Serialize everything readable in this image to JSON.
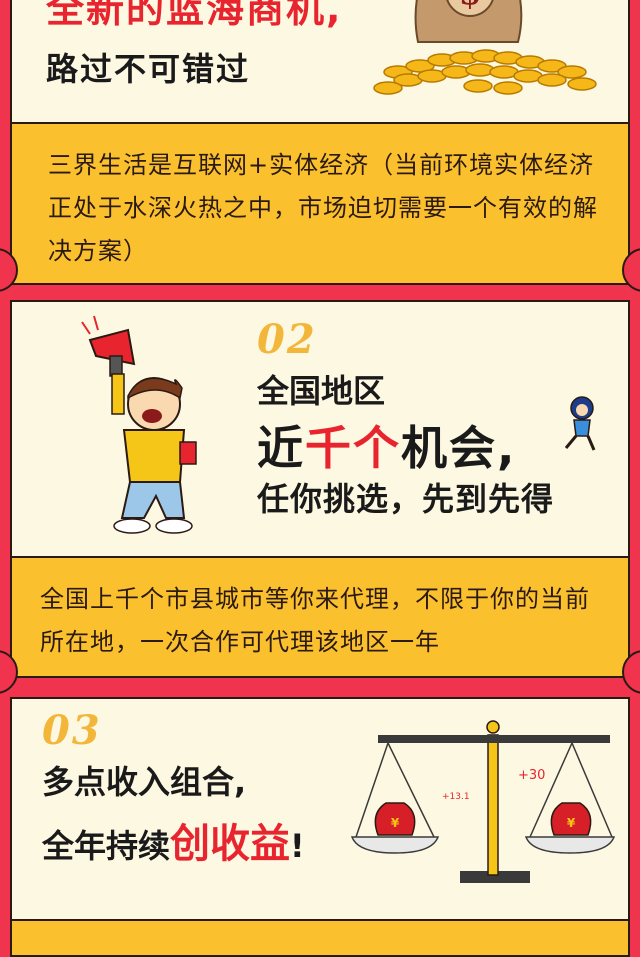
{
  "section1": {
    "title_partial": "全新的蓝海商机,",
    "subtitle": "路过不可错过",
    "body": "三界生活是互联网+实体经济（当前环境实体经济正处于水深火热之中，市场迫切需要一个有效的解决方案）"
  },
  "section2": {
    "number": "02",
    "line1": "全国地区",
    "line2_prefix": "近",
    "line2_highlight": "千个",
    "line2_suffix": "机会,",
    "line3": "任你挑选，先到先得",
    "body": "全国上千个市县城市等你来代理，不限于你的当前所在地，一次合作可代理该地区一年"
  },
  "section3": {
    "number": "03",
    "line1": "多点收入组合,",
    "line2_prefix": "全年持续",
    "line2_highlight": "创收益",
    "line2_suffix": "!",
    "scale_left_label": "+13.1",
    "scale_right_label": "+30"
  },
  "colors": {
    "background_red": "#f0344e",
    "card_cream": "#fdf8e2",
    "band_yellow": "#fbc02d",
    "accent_red": "#e8242f",
    "number_gold": "#f2b73a"
  },
  "icons": [
    "money-bag-icon",
    "gold-coins-icon",
    "megaphone-boy-illustration",
    "small-runner-illustration",
    "balance-scale-icon",
    "red-money-bag-icon"
  ]
}
